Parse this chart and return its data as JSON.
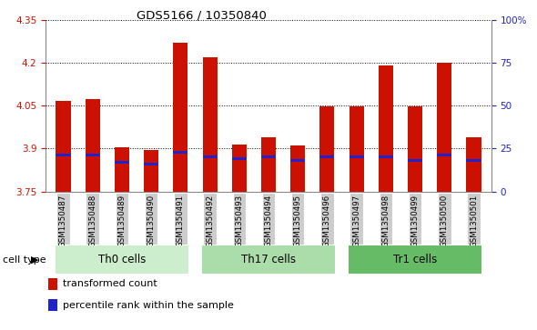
{
  "title": "GDS5166 / 10350840",
  "samples": [
    "GSM1350487",
    "GSM1350488",
    "GSM1350489",
    "GSM1350490",
    "GSM1350491",
    "GSM1350492",
    "GSM1350493",
    "GSM1350494",
    "GSM1350495",
    "GSM1350496",
    "GSM1350497",
    "GSM1350498",
    "GSM1350499",
    "GSM1350500",
    "GSM1350501"
  ],
  "transformed_count": [
    4.065,
    4.072,
    3.905,
    3.895,
    4.27,
    4.22,
    3.915,
    3.94,
    3.91,
    4.048,
    4.048,
    4.19,
    4.048,
    4.2,
    3.94
  ],
  "percentile_rank": [
    21,
    21,
    17,
    16,
    23,
    20,
    19,
    20,
    18,
    20,
    20,
    20,
    18,
    21,
    18
  ],
  "ymin": 3.75,
  "ymax": 4.35,
  "yticks": [
    3.75,
    3.9,
    4.05,
    4.2,
    4.35
  ],
  "ytick_labels": [
    "3.75",
    "3.9",
    "4.05",
    "4.2",
    "4.35"
  ],
  "right_yticks": [
    0,
    25,
    50,
    75,
    100
  ],
  "right_ytick_labels": [
    "0",
    "25",
    "50",
    "75",
    "100%"
  ],
  "bar_color": "#cc1100",
  "blue_color": "#2222cc",
  "group_defs": [
    {
      "start": 0,
      "end": 4,
      "label": "Th0 cells",
      "color": "#cceecc"
    },
    {
      "start": 5,
      "end": 9,
      "label": "Th17 cells",
      "color": "#aaddaa"
    },
    {
      "start": 10,
      "end": 14,
      "label": "Tr1 cells",
      "color": "#66bb66"
    }
  ],
  "legend_items": [
    {
      "label": "transformed count",
      "color": "#cc1100"
    },
    {
      "label": "percentile rank within the sample",
      "color": "#2222cc"
    }
  ],
  "cell_type_label": "cell type",
  "axis_color_left": "#cc1100",
  "axis_color_right": "#2222bb",
  "gray_bg": "#cccccc"
}
